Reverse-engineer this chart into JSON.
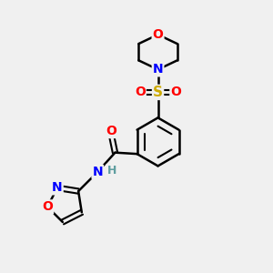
{
  "background_color": "#f0f0f0",
  "bond_color": "#000000",
  "atom_colors": {
    "O": "#ff0000",
    "N": "#0000ff",
    "S": "#ccaa00",
    "C": "#000000",
    "H": "#5f9ea0"
  },
  "figsize": [
    3.0,
    3.0
  ],
  "dpi": 100
}
